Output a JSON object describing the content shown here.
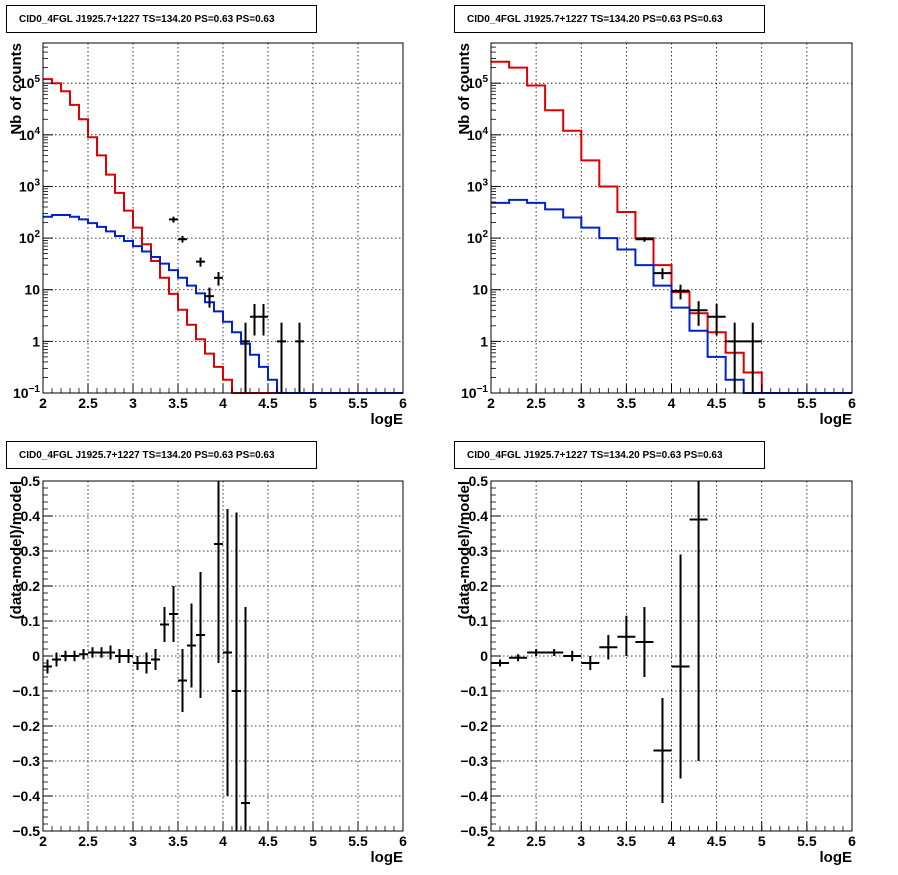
{
  "colors": {
    "data": "#000000",
    "model": "#dd0000",
    "component": "#0022cc",
    "grid": "#000000"
  },
  "chart_data": [
    {
      "type": "line",
      "title": "CID0_4FGL J1925.7+1227 TS=134.20 PS=0.63 PS=0.63",
      "xlabel": "logE",
      "ylabel": "Nb of counts",
      "xlim": [
        2,
        6
      ],
      "ylim": [
        0.1,
        600000
      ],
      "log_y": true,
      "grid": true,
      "xticks": [
        "2",
        "2.5",
        "3",
        "3.5",
        "4",
        "4.5",
        "5",
        "5.5",
        "6"
      ],
      "yticks": [
        {
          "v": 0.1,
          "main": "10",
          "sup": "−1"
        },
        {
          "v": 1,
          "main": "1",
          "sup": ""
        },
        {
          "v": 10,
          "main": "10",
          "sup": ""
        },
        {
          "v": 100,
          "main": "10",
          "sup": "2"
        },
        {
          "v": 1000,
          "main": "10",
          "sup": "3"
        },
        {
          "v": 10000,
          "main": "10",
          "sup": "4"
        },
        {
          "v": 100000,
          "main": "10",
          "sup": "5"
        }
      ],
      "bin_width": 0.1,
      "series": [
        {
          "name": "model",
          "color": "#dd0000",
          "style": "step",
          "x": [
            2.0,
            2.1,
            2.2,
            2.3,
            2.4,
            2.5,
            2.6,
            2.7,
            2.8,
            2.9,
            3.0,
            3.1,
            3.2,
            3.3,
            3.4,
            3.5,
            3.6,
            3.7,
            3.8,
            3.9,
            4.0,
            4.1,
            4.2,
            4.3,
            4.4,
            4.5,
            4.6,
            4.7,
            4.8,
            4.9,
            5.0,
            5.1,
            5.2,
            5.3,
            5.4,
            5.5,
            5.6,
            5.7,
            5.8,
            5.9
          ],
          "values": [
            120000,
            100000,
            70000,
            38000,
            20000,
            9000,
            4000,
            1700,
            750,
            340,
            160,
            76,
            36,
            17,
            8.3,
            4.1,
            2.1,
            1.1,
            0.58,
            0.32,
            0.18,
            0.1,
            0.1,
            0.1,
            0.1,
            0.1,
            0.1,
            0.1,
            0.1,
            0.1,
            0.1,
            0.1,
            0.1,
            0.1,
            0.1,
            0.1,
            0.1,
            0.1,
            0.1,
            0.1
          ]
        },
        {
          "name": "component",
          "color": "#0022cc",
          "style": "step",
          "x": [
            2.0,
            2.1,
            2.2,
            2.3,
            2.4,
            2.5,
            2.6,
            2.7,
            2.8,
            2.9,
            3.0,
            3.1,
            3.2,
            3.3,
            3.4,
            3.5,
            3.6,
            3.7,
            3.8,
            3.9,
            4.0,
            4.1,
            4.2,
            4.3,
            4.4,
            4.5,
            4.6,
            4.7,
            4.8,
            4.9,
            5.0,
            5.1,
            5.2,
            5.3,
            5.4,
            5.5,
            5.6,
            5.7,
            5.8,
            5.9
          ],
          "values": [
            260,
            280,
            280,
            260,
            230,
            195,
            165,
            135,
            110,
            88,
            70,
            55,
            43,
            32,
            24,
            17,
            12,
            8.5,
            5.7,
            3.8,
            2.4,
            1.5,
            0.9,
            0.55,
            0.32,
            0.18,
            0.1,
            0.1,
            0.1,
            0.1,
            0.1,
            0.1,
            0.1,
            0.1,
            0.1,
            0.1,
            0.1,
            0.1,
            0.1,
            0.1
          ]
        }
      ],
      "points": [
        {
          "x": 3.45,
          "y": 230,
          "lo": 200,
          "hi": 260
        },
        {
          "x": 3.55,
          "y": 95,
          "lo": 82,
          "hi": 110
        },
        {
          "x": 3.75,
          "y": 35,
          "lo": 28,
          "hi": 42
        },
        {
          "x": 3.85,
          "y": 7.5,
          "lo": 4.5,
          "hi": 11
        },
        {
          "x": 3.95,
          "y": 17,
          "lo": 12,
          "hi": 22
        },
        {
          "x": 4.25,
          "y": 1,
          "lo": 0.1,
          "hi": 2.3
        },
        {
          "x": 4.35,
          "y": 3,
          "lo": 1.3,
          "hi": 5.3
        },
        {
          "x": 4.45,
          "y": 3,
          "lo": 1.3,
          "hi": 5.3
        },
        {
          "x": 4.65,
          "y": 1,
          "lo": 0.1,
          "hi": 2.3
        },
        {
          "x": 4.85,
          "y": 1,
          "lo": 0.1,
          "hi": 2.3
        }
      ]
    },
    {
      "type": "line",
      "title": "CID0_4FGL J1925.7+1227 TS=134.20 PS=0.63 PS=0.63",
      "xlabel": "logE",
      "ylabel": "Nb of counts",
      "xlim": [
        2,
        6
      ],
      "ylim": [
        0.1,
        600000
      ],
      "log_y": true,
      "grid": true,
      "xticks": [
        "2",
        "2.5",
        "3",
        "3.5",
        "4",
        "4.5",
        "5",
        "5.5",
        "6"
      ],
      "yticks": [
        {
          "v": 0.1,
          "main": "10",
          "sup": "−1"
        },
        {
          "v": 1,
          "main": "1",
          "sup": ""
        },
        {
          "v": 10,
          "main": "10",
          "sup": ""
        },
        {
          "v": 100,
          "main": "10",
          "sup": "2"
        },
        {
          "v": 1000,
          "main": "10",
          "sup": "3"
        },
        {
          "v": 10000,
          "main": "10",
          "sup": "4"
        },
        {
          "v": 100000,
          "main": "10",
          "sup": "5"
        }
      ],
      "bin_width": 0.2,
      "series": [
        {
          "name": "model",
          "color": "#dd0000",
          "style": "step",
          "x": [
            2.0,
            2.2,
            2.4,
            2.6,
            2.8,
            3.0,
            3.2,
            3.4,
            3.6,
            3.8,
            4.0,
            4.2,
            4.4,
            4.6,
            4.8,
            5.0,
            5.2,
            5.4,
            5.6,
            5.8
          ],
          "values": [
            260000,
            200000,
            90000,
            30000,
            12000,
            3200,
            1000,
            320,
            100,
            30,
            9,
            3.5,
            1.5,
            0.6,
            0.25,
            0.1,
            0.1,
            0.1,
            0.1,
            0.1
          ]
        },
        {
          "name": "component",
          "color": "#0022cc",
          "style": "step",
          "x": [
            2.0,
            2.2,
            2.4,
            2.6,
            2.8,
            3.0,
            3.2,
            3.4,
            3.6,
            3.8,
            4.0,
            4.2,
            4.4,
            4.6,
            4.8,
            5.0,
            5.2,
            5.4,
            5.6,
            5.8
          ],
          "values": [
            480,
            550,
            480,
            360,
            250,
            160,
            100,
            60,
            30,
            12,
            4.5,
            1.6,
            0.5,
            0.18,
            0.1,
            0.1,
            0.1,
            0.1,
            0.1,
            0.1
          ]
        }
      ],
      "points": [
        {
          "x": 3.7,
          "y": 95,
          "lo": 85,
          "hi": 105
        },
        {
          "x": 3.9,
          "y": 21,
          "lo": 16,
          "hi": 26
        },
        {
          "x": 4.1,
          "y": 9.5,
          "lo": 6.5,
          "hi": 12.5
        },
        {
          "x": 4.3,
          "y": 4,
          "lo": 2,
          "hi": 6
        },
        {
          "x": 4.5,
          "y": 3,
          "lo": 1.3,
          "hi": 5.3
        },
        {
          "x": 4.7,
          "y": 1,
          "lo": 0.1,
          "hi": 2.3
        },
        {
          "x": 4.9,
          "y": 1,
          "lo": 0.1,
          "hi": 2.3
        }
      ]
    },
    {
      "type": "scatter",
      "title": "CID0_4FGL J1925.7+1227 TS=134.20 PS=0.63 PS=0.63",
      "xlabel": "logE",
      "ylabel": "(data-model)/model",
      "xlim": [
        2,
        6
      ],
      "ylim": [
        -0.5,
        0.5
      ],
      "log_y": false,
      "grid": true,
      "xticks": [
        "2",
        "2.5",
        "3",
        "3.5",
        "4",
        "4.5",
        "5",
        "5.5",
        "6"
      ],
      "yticks": [
        {
          "v": -0.5,
          "main": "−0.5",
          "sup": ""
        },
        {
          "v": -0.4,
          "main": "−0.4",
          "sup": ""
        },
        {
          "v": -0.3,
          "main": "−0.3",
          "sup": ""
        },
        {
          "v": -0.2,
          "main": "−0.2",
          "sup": ""
        },
        {
          "v": -0.1,
          "main": "−0.1",
          "sup": ""
        },
        {
          "v": 0,
          "main": "0",
          "sup": ""
        },
        {
          "v": 0.1,
          "main": "0.1",
          "sup": ""
        },
        {
          "v": 0.2,
          "main": "0.2",
          "sup": ""
        },
        {
          "v": 0.3,
          "main": "0.3",
          "sup": ""
        },
        {
          "v": 0.4,
          "main": "0.4",
          "sup": ""
        },
        {
          "v": 0.5,
          "main": "0.5",
          "sup": ""
        }
      ],
      "bin_width": 0.1,
      "series": [],
      "points": [
        {
          "x": 2.05,
          "y": -0.03,
          "lo": -0.05,
          "hi": -0.01
        },
        {
          "x": 2.15,
          "y": -0.01,
          "lo": -0.03,
          "hi": 0.01
        },
        {
          "x": 2.25,
          "y": 0.0,
          "lo": -0.015,
          "hi": 0.015
        },
        {
          "x": 2.35,
          "y": 0.0,
          "lo": -0.015,
          "hi": 0.015
        },
        {
          "x": 2.45,
          "y": 0.005,
          "lo": -0.01,
          "hi": 0.02
        },
        {
          "x": 2.55,
          "y": 0.01,
          "lo": -0.005,
          "hi": 0.025
        },
        {
          "x": 2.65,
          "y": 0.01,
          "lo": -0.005,
          "hi": 0.025
        },
        {
          "x": 2.75,
          "y": 0.01,
          "lo": -0.01,
          "hi": 0.03
        },
        {
          "x": 2.85,
          "y": 0.0,
          "lo": -0.02,
          "hi": 0.02
        },
        {
          "x": 2.95,
          "y": 0.0,
          "lo": -0.02,
          "hi": 0.02
        },
        {
          "x": 3.05,
          "y": -0.02,
          "lo": -0.04,
          "hi": 0.0
        },
        {
          "x": 3.15,
          "y": -0.02,
          "lo": -0.05,
          "hi": 0.01
        },
        {
          "x": 3.25,
          "y": -0.01,
          "lo": -0.04,
          "hi": 0.02
        },
        {
          "x": 3.35,
          "y": 0.09,
          "lo": 0.04,
          "hi": 0.14
        },
        {
          "x": 3.45,
          "y": 0.12,
          "lo": 0.04,
          "hi": 0.2
        },
        {
          "x": 3.55,
          "y": -0.07,
          "lo": -0.16,
          "hi": 0.02
        },
        {
          "x": 3.65,
          "y": 0.03,
          "lo": -0.09,
          "hi": 0.15
        },
        {
          "x": 3.75,
          "y": 0.06,
          "lo": -0.12,
          "hi": 0.24
        },
        {
          "x": 3.95,
          "y": 0.32,
          "lo": -0.02,
          "hi": 0.5
        },
        {
          "x": 4.05,
          "y": 0.01,
          "lo": -0.4,
          "hi": 0.42
        },
        {
          "x": 4.15,
          "y": -0.1,
          "lo": -0.5,
          "hi": 0.41
        },
        {
          "x": 4.25,
          "y": -0.42,
          "lo": -0.5,
          "hi": 0.14
        }
      ]
    },
    {
      "type": "scatter",
      "title": "CID0_4FGL J1925.7+1227 TS=134.20 PS=0.63 PS=0.63",
      "xlabel": "logE",
      "ylabel": "(data-model)/model",
      "xlim": [
        2,
        6
      ],
      "ylim": [
        -0.5,
        0.5
      ],
      "log_y": false,
      "grid": true,
      "xticks": [
        "2",
        "2.5",
        "3",
        "3.5",
        "4",
        "4.5",
        "5",
        "5.5",
        "6"
      ],
      "yticks": [
        {
          "v": -0.5,
          "main": "−0.5",
          "sup": ""
        },
        {
          "v": -0.4,
          "main": "−0.4",
          "sup": ""
        },
        {
          "v": -0.3,
          "main": "−0.3",
          "sup": ""
        },
        {
          "v": -0.2,
          "main": "−0.2",
          "sup": ""
        },
        {
          "v": -0.1,
          "main": "−0.1",
          "sup": ""
        },
        {
          "v": 0,
          "main": "0",
          "sup": ""
        },
        {
          "v": 0.1,
          "main": "0.1",
          "sup": ""
        },
        {
          "v": 0.2,
          "main": "0.2",
          "sup": ""
        },
        {
          "v": 0.3,
          "main": "0.3",
          "sup": ""
        },
        {
          "v": 0.4,
          "main": "0.4",
          "sup": ""
        },
        {
          "v": 0.5,
          "main": "0.5",
          "sup": ""
        }
      ],
      "bin_width": 0.2,
      "series": [],
      "points": [
        {
          "x": 2.1,
          "y": -0.02,
          "lo": -0.03,
          "hi": -0.01
        },
        {
          "x": 2.3,
          "y": -0.005,
          "lo": -0.015,
          "hi": 0.005
        },
        {
          "x": 2.5,
          "y": 0.01,
          "lo": 0.0,
          "hi": 0.02
        },
        {
          "x": 2.7,
          "y": 0.01,
          "lo": 0.0,
          "hi": 0.02
        },
        {
          "x": 2.9,
          "y": 0.0,
          "lo": -0.015,
          "hi": 0.015
        },
        {
          "x": 3.1,
          "y": -0.02,
          "lo": -0.04,
          "hi": 0.0
        },
        {
          "x": 3.3,
          "y": 0.025,
          "lo": -0.01,
          "hi": 0.06
        },
        {
          "x": 3.5,
          "y": 0.055,
          "lo": 0.0,
          "hi": 0.115
        },
        {
          "x": 3.7,
          "y": 0.04,
          "lo": -0.06,
          "hi": 0.14
        },
        {
          "x": 3.9,
          "y": -0.27,
          "lo": -0.42,
          "hi": -0.12
        },
        {
          "x": 4.1,
          "y": -0.03,
          "lo": -0.35,
          "hi": 0.29
        },
        {
          "x": 4.3,
          "y": 0.39,
          "lo": -0.3,
          "hi": 0.5
        }
      ]
    }
  ]
}
